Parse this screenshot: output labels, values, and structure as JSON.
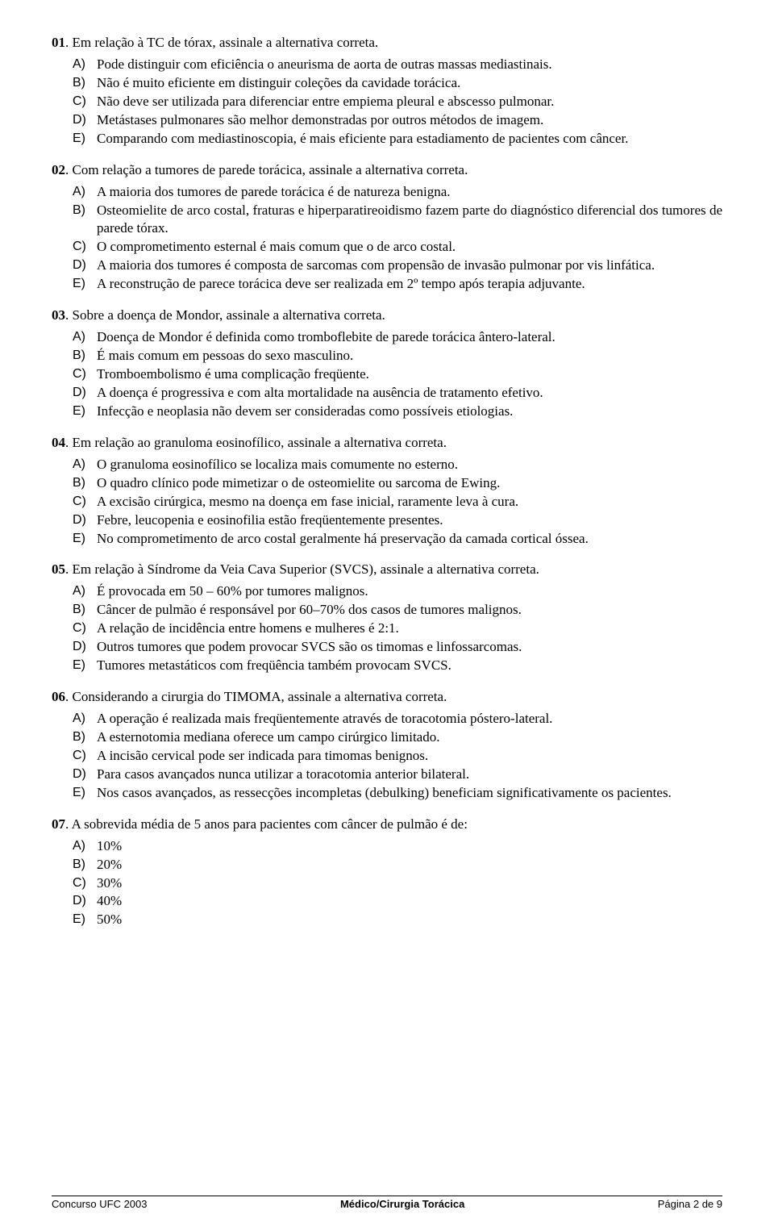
{
  "questions": [
    {
      "number": "01",
      "stem": "Em relação à TC de tórax, assinale a alternativa correta.",
      "options": [
        "Pode distinguir com eficiência o aneurisma de aorta de outras massas mediastinais.",
        "Não é muito eficiente em distinguir coleções da cavidade torácica.",
        "Não deve ser utilizada para diferenciar entre empiema pleural e abscesso pulmonar.",
        "Metástases pulmonares são melhor demonstradas por outros métodos de imagem.",
        "Comparando com mediastinoscopia, é mais eficiente para estadiamento de pacientes com câncer."
      ]
    },
    {
      "number": "02",
      "stem": "Com relação a tumores de parede torácica, assinale a alternativa correta.",
      "options": [
        "A maioria dos tumores de parede torácica é de natureza benigna.",
        "Osteomielite de arco costal, fraturas e hiperparatireoidismo fazem parte do diagnóstico diferencial dos tumores de parede tórax.",
        "O comprometimento esternal é mais comum que o de arco costal.",
        "A maioria dos tumores é composta de sarcomas com propensão de invasão pulmonar por vis linfática.",
        "A reconstrução de parece torácica deve ser realizada em 2º tempo após terapia adjuvante."
      ]
    },
    {
      "number": "03",
      "stem": "Sobre a doença de Mondor, assinale a alternativa correta.",
      "options": [
        "Doença de Mondor é definida como tromboflebite de parede torácica ântero-lateral.",
        "É mais comum em pessoas do sexo masculino.",
        "Tromboembolismo é uma complicação freqüente.",
        "A doença é progressiva e com alta mortalidade na ausência de tratamento efetivo.",
        "Infecção e neoplasia não devem ser consideradas como possíveis etiologias."
      ]
    },
    {
      "number": "04",
      "stem": "Em relação ao granuloma eosinofílico, assinale a alternativa correta.",
      "options": [
        "O granuloma eosinofílico se localiza mais comumente no esterno.",
        "O quadro clínico pode mimetizar o de osteomielite ou sarcoma de Ewing.",
        "A excisão cirúrgica, mesmo na doença em fase inicial, raramente leva à cura.",
        "Febre, leucopenia e eosinofilia estão freqüentemente presentes.",
        "No comprometimento de arco costal geralmente há preservação da camada cortical óssea."
      ]
    },
    {
      "number": "05",
      "stem": "Em relação à Síndrome da Veia Cava Superior (SVCS), assinale a alternativa correta.",
      "options": [
        "É provocada em 50 – 60% por tumores malignos.",
        "Câncer de pulmão é responsável por 60–70% dos casos de tumores malignos.",
        "A relação de incidência entre homens e mulheres é 2:1.",
        "Outros tumores que podem provocar SVCS são os timomas e linfossarcomas.",
        "Tumores metastáticos com freqüência também provocam SVCS."
      ]
    },
    {
      "number": "06",
      "stem": "Considerando a cirurgia do TIMOMA, assinale a alternativa correta.",
      "options": [
        "A operação é realizada mais freqüentemente através de toracotomia póstero-lateral.",
        "A esternotomia mediana oferece um campo cirúrgico limitado.",
        "A incisão cervical pode ser indicada para timomas benignos.",
        "Para casos avançados nunca utilizar a toracotomia anterior bilateral.",
        "Nos casos avançados, as ressecções incompletas (debulking) beneficiam significativamente os pacientes."
      ]
    },
    {
      "number": "07",
      "stem": "A sobrevida média de 5 anos para pacientes com câncer de pulmão é de:",
      "options": [
        "10%",
        "20%",
        "30%",
        "40%",
        "50%"
      ]
    }
  ],
  "letters": [
    "A)",
    "B)",
    "C)",
    "D)",
    "E)"
  ],
  "footer": {
    "left": "Concurso UFC 2003",
    "center": "Médico/Cirurgia Torácica",
    "right": "Página 2 de 9"
  }
}
